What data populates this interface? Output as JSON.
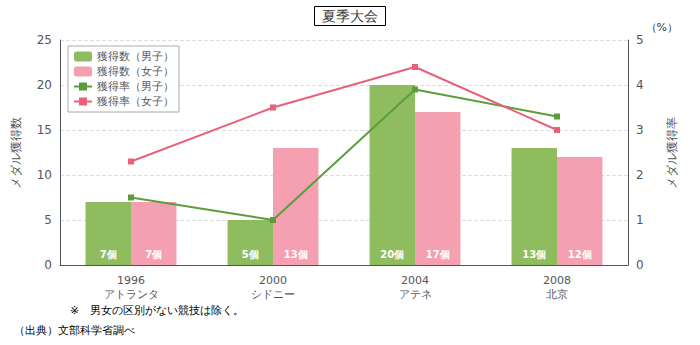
{
  "chart_data": {
    "type": "bar",
    "title": "夏季大会",
    "categories": [
      "1996\nアトランタ",
      "2000\nシドニー",
      "2004\nアテネ",
      "2008\n北京"
    ],
    "series": [
      {
        "name": "獲得数（男子）",
        "type": "bar",
        "color": "#8fbc5f",
        "values": [
          7,
          5,
          20,
          13
        ],
        "value_labels": [
          "7個",
          "5個",
          "20個",
          "13個"
        ],
        "data_labels": true
      },
      {
        "name": "獲得数（女子）",
        "type": "bar",
        "color": "#f4a0b0",
        "values": [
          7,
          13,
          17,
          12
        ],
        "value_labels": [
          "7個",
          "13個",
          "17個",
          "12個"
        ],
        "data_labels": true
      },
      {
        "name": "獲得率（男子）",
        "type": "line",
        "axis": "y2",
        "color": "#5a9e3a",
        "marker": "square",
        "values": [
          1.5,
          1.0,
          3.9,
          3.3
        ]
      },
      {
        "name": "獲得率（女子）",
        "type": "line",
        "axis": "y2",
        "color": "#e8607a",
        "marker": "square",
        "values": [
          2.3,
          3.5,
          4.4,
          3.0
        ]
      }
    ],
    "ylabel": "メダル獲得数",
    "y2label": "メダル獲得率",
    "ylim": [
      0,
      25
    ],
    "yticks": [
      0,
      5,
      10,
      15,
      20,
      25
    ],
    "y2lim": [
      0.0,
      5.0
    ],
    "y2ticks": [
      0.0,
      1.0,
      2.0,
      3.0,
      4.0,
      5.0
    ],
    "grid": true,
    "legend": "upper left",
    "annotations": [
      "（%）",
      "※　男女の区別がない競技は除く。",
      "（出典）文部科学省調べ"
    ]
  }
}
